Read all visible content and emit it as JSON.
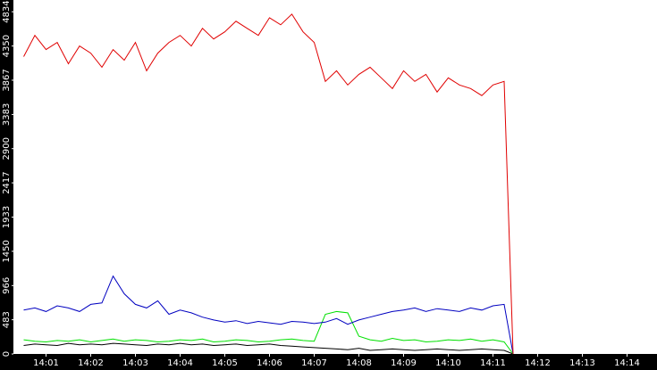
{
  "chart_data": {
    "type": "line",
    "x": [
      840.5,
      840.75,
      841,
      841.25,
      841.5,
      841.75,
      842,
      842.25,
      842.5,
      842.75,
      843,
      843.25,
      843.5,
      843.75,
      844,
      844.25,
      844.5,
      844.75,
      845,
      845.25,
      845.5,
      845.75,
      846,
      846.25,
      846.5,
      846.75,
      847,
      847.25,
      847.5,
      847.75,
      848,
      848.25,
      848.5,
      848.75,
      849,
      849.25,
      849.5,
      849.75,
      850,
      850.25,
      850.5,
      850.75,
      851,
      851.25,
      851.45
    ],
    "series": [
      {
        "color": "#e00000",
        "values": [
          4200,
          4500,
          4300,
          4400,
          4100,
          4350,
          4250,
          4050,
          4300,
          4150,
          4400,
          4000,
          4250,
          4400,
          4500,
          4350,
          4600,
          4450,
          4550,
          4700,
          4600,
          4500,
          4750,
          4650,
          4800,
          4550,
          4400,
          3850,
          4000,
          3800,
          3950,
          4050,
          3900,
          3750,
          4000,
          3850,
          3950,
          3700,
          3900,
          3800,
          3750,
          3650,
          3800,
          3850,
          0
        ]
      },
      {
        "color": "#0000c0",
        "values": [
          620,
          650,
          600,
          680,
          650,
          600,
          700,
          720,
          1100,
          850,
          700,
          650,
          750,
          560,
          620,
          580,
          520,
          480,
          450,
          470,
          430,
          460,
          440,
          420,
          460,
          450,
          430,
          450,
          500,
          420,
          480,
          520,
          560,
          600,
          620,
          650,
          600,
          640,
          620,
          600,
          650,
          620,
          680,
          700,
          0
        ]
      },
      {
        "color": "#00e000",
        "values": [
          200,
          180,
          170,
          190,
          180,
          200,
          170,
          190,
          210,
          180,
          200,
          190,
          170,
          180,
          200,
          190,
          210,
          170,
          180,
          200,
          190,
          170,
          180,
          200,
          210,
          190,
          180,
          560,
          600,
          580,
          250,
          200,
          180,
          220,
          190,
          200,
          170,
          180,
          200,
          190,
          210,
          180,
          200,
          170,
          0
        ]
      },
      {
        "color": "#000000",
        "values": [
          120,
          140,
          130,
          120,
          150,
          130,
          140,
          130,
          150,
          140,
          130,
          120,
          140,
          130,
          150,
          130,
          140,
          120,
          130,
          140,
          120,
          130,
          140,
          120,
          110,
          100,
          90,
          80,
          70,
          60,
          80,
          50,
          60,
          70,
          60,
          50,
          60,
          70,
          60,
          50,
          60,
          70,
          60,
          50,
          0
        ]
      }
    ],
    "xlim": [
      840.27,
      854.67
    ],
    "xticks": [
      {
        "value": 841,
        "label": "14:01"
      },
      {
        "value": 842,
        "label": "14:02"
      },
      {
        "value": 843,
        "label": "14:03"
      },
      {
        "value": 844,
        "label": "14:04"
      },
      {
        "value": 845,
        "label": "14:05"
      },
      {
        "value": 846,
        "label": "14:06"
      },
      {
        "value": 847,
        "label": "14:07"
      },
      {
        "value": 848,
        "label": "14:08"
      },
      {
        "value": 849,
        "label": "14:09"
      },
      {
        "value": 850,
        "label": "14:10"
      },
      {
        "value": 851,
        "label": "14:11"
      },
      {
        "value": 852,
        "label": "14:12"
      },
      {
        "value": 853,
        "label": "14:13"
      },
      {
        "value": 854,
        "label": "14:14"
      }
    ],
    "ylim": [
      0,
      5000
    ],
    "yticks": [
      0,
      483,
      966,
      1450,
      1933,
      2417,
      2900,
      3383,
      3867,
      4350,
      4834
    ],
    "grid": false
  }
}
